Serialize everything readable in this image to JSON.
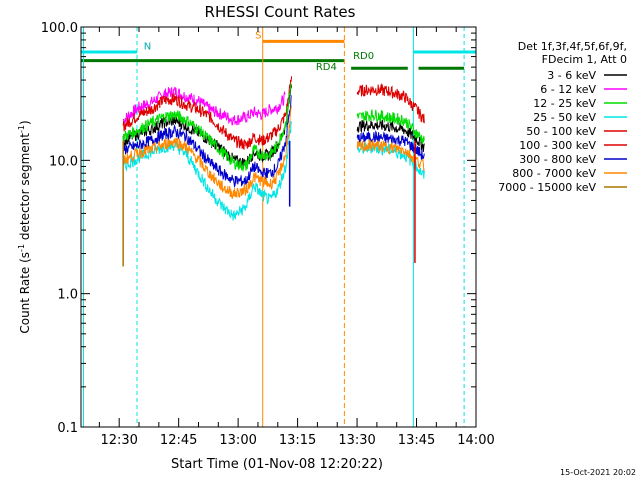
{
  "chart_data": {
    "type": "line",
    "title": "RHESSI Count Rates",
    "xlabel": "Start Time (01-Nov-08 12:20:22)",
    "ylabel_main": "Count Rate (s",
    "ylabel_sup1": "-1",
    "ylabel_mid": " detector segment",
    "ylabel_sup2": "-1",
    "ylabel_end": ")",
    "y_scale": "log",
    "xlim_minutes": [
      740.367,
      840
    ],
    "ylim": [
      0.1,
      100
    ],
    "x_ticks": [
      {
        "min": 750,
        "label": "12:30"
      },
      {
        "min": 765,
        "label": "12:45"
      },
      {
        "min": 780,
        "label": "13:00"
      },
      {
        "min": 795,
        "label": "13:15"
      },
      {
        "min": 810,
        "label": "13:30"
      },
      {
        "min": 825,
        "label": "13:45"
      },
      {
        "min": 840,
        "label": "14:00"
      }
    ],
    "y_ticks": [
      {
        "value": 0.1,
        "label": "0.1"
      },
      {
        "value": 1,
        "label": "1.0"
      },
      {
        "value": 10,
        "label": "10.0"
      },
      {
        "value": 100,
        "label": "100.0"
      }
    ],
    "legend_position": "right",
    "legend_header": [
      "Det 1f,3f,4f,5f,6f,9f,",
      "FDecim 1, Att 0"
    ],
    "series": [
      {
        "name": "3 - 6 keV",
        "color": "#000000"
      },
      {
        "name": "6 - 12 keV",
        "color": "#ff00ff"
      },
      {
        "name": "12 - 25 keV",
        "color": "#00dd00"
      },
      {
        "name": "25 - 50 keV",
        "color": "#00e5e5"
      },
      {
        "name": "50 - 100 keV",
        "color": "#dd0000"
      },
      {
        "name": "100 - 300 keV",
        "color": "#dd0000"
      },
      {
        "name": "300 - 800 keV",
        "color": "#0000cc"
      },
      {
        "name": "800 - 7000 keV",
        "color": "#ff8800"
      },
      {
        "name": "7000 - 15000 keV",
        "color": "#aa7700"
      }
    ],
    "data_series": [
      {
        "name": "6 - 12 keV",
        "color": "#ff00ff",
        "points": [
          [
            751,
            20
          ],
          [
            755,
            25
          ],
          [
            758,
            27
          ],
          [
            761,
            31
          ],
          [
            764,
            33
          ],
          [
            767,
            30
          ],
          [
            770,
            28
          ],
          [
            773,
            24
          ],
          [
            776,
            22
          ],
          [
            779,
            20
          ],
          [
            782,
            21
          ],
          [
            784,
            23
          ],
          [
            786,
            22
          ],
          [
            788,
            24
          ],
          [
            790,
            25
          ],
          [
            792,
            30
          ]
        ]
      },
      {
        "name": "100 - 300 keV",
        "color": "#dd0000",
        "points": [
          [
            751,
            18
          ],
          [
            755,
            22
          ],
          [
            758,
            24
          ],
          [
            761,
            28
          ],
          [
            764,
            29
          ],
          [
            767,
            26
          ],
          [
            770,
            24
          ],
          [
            773,
            21
          ],
          [
            776,
            17
          ],
          [
            779,
            14
          ],
          [
            782,
            13
          ],
          [
            784,
            15
          ],
          [
            786,
            14
          ],
          [
            788,
            15
          ],
          [
            790,
            17
          ],
          [
            792,
            22
          ],
          [
            793.5,
            42
          ],
          [
            810,
            33
          ],
          [
            814,
            34
          ],
          [
            818,
            33
          ],
          [
            822,
            30
          ],
          [
            825,
            24
          ],
          [
            827,
            20
          ]
        ]
      },
      {
        "name": "3 - 6 keV",
        "color": "#000000",
        "points": [
          [
            751,
            14
          ],
          [
            755,
            16
          ],
          [
            758,
            17
          ],
          [
            761,
            19
          ],
          [
            764,
            20
          ],
          [
            767,
            18
          ],
          [
            770,
            16
          ],
          [
            773,
            14
          ],
          [
            776,
            12
          ],
          [
            779,
            10
          ],
          [
            782,
            9.5
          ],
          [
            784,
            11.5
          ],
          [
            786,
            10.8
          ],
          [
            788,
            11
          ],
          [
            790,
            13
          ],
          [
            792,
            18
          ],
          [
            793.5,
            38
          ],
          [
            810,
            18
          ],
          [
            814,
            18.5
          ],
          [
            818,
            18
          ],
          [
            822,
            17
          ],
          [
            825,
            14.5
          ],
          [
            827,
            12.5
          ]
        ]
      },
      {
        "name": "12 - 25 keV",
        "color": "#00dd00",
        "points": [
          [
            751,
            15
          ],
          [
            755,
            17
          ],
          [
            758,
            19
          ],
          [
            761,
            21
          ],
          [
            764,
            22
          ],
          [
            767,
            20
          ],
          [
            770,
            17
          ],
          [
            773,
            14
          ],
          [
            776,
            11.5
          ],
          [
            779,
            9.5
          ],
          [
            782,
            9
          ],
          [
            784,
            12
          ],
          [
            786,
            11
          ],
          [
            788,
            11
          ],
          [
            790,
            13
          ],
          [
            792,
            19
          ],
          [
            793.5,
            40
          ],
          [
            810,
            21
          ],
          [
            814,
            22
          ],
          [
            818,
            21
          ],
          [
            822,
            20
          ],
          [
            825,
            16
          ],
          [
            827,
            14
          ]
        ]
      },
      {
        "name": "300 - 800 keV",
        "color": "#0000cc",
        "points": [
          [
            751,
            12
          ],
          [
            755,
            13
          ],
          [
            758,
            14
          ],
          [
            761,
            15.5
          ],
          [
            764,
            16.5
          ],
          [
            767,
            15
          ],
          [
            770,
            12
          ],
          [
            773,
            9.5
          ],
          [
            776,
            8
          ],
          [
            779,
            7
          ],
          [
            782,
            7
          ],
          [
            784,
            9
          ],
          [
            786,
            8
          ],
          [
            788,
            8
          ],
          [
            790,
            9
          ],
          [
            792,
            14
          ],
          [
            793.5,
            30
          ],
          [
            810,
            14.5
          ],
          [
            814,
            15
          ],
          [
            818,
            14.5
          ],
          [
            822,
            14
          ],
          [
            825,
            12
          ],
          [
            827,
            10.5
          ]
        ]
      },
      {
        "name": "25 - 50 keV",
        "color": "#00e5e5",
        "points": [
          [
            751,
            9
          ],
          [
            755,
            10.5
          ],
          [
            758,
            11.5
          ],
          [
            761,
            12.5
          ],
          [
            764,
            13
          ],
          [
            767,
            11
          ],
          [
            770,
            8
          ],
          [
            773,
            5.8
          ],
          [
            776,
            4.5
          ],
          [
            779,
            3.8
          ],
          [
            782,
            4.5
          ],
          [
            784,
            6.5
          ],
          [
            786,
            5.5
          ],
          [
            788,
            5
          ],
          [
            790,
            6
          ],
          [
            792,
            9
          ],
          [
            793.5,
            20
          ],
          [
            810,
            12
          ],
          [
            814,
            12.5
          ],
          [
            818,
            12
          ],
          [
            822,
            11
          ],
          [
            825,
            9
          ],
          [
            827,
            7.5
          ]
        ]
      },
      {
        "name": "800 - 7000 keV",
        "color": "#ff8800",
        "points": [
          [
            751,
            10
          ],
          [
            755,
            11.5
          ],
          [
            758,
            12
          ],
          [
            761,
            13
          ],
          [
            764,
            14
          ],
          [
            767,
            12.5
          ],
          [
            770,
            10
          ],
          [
            773,
            7.8
          ],
          [
            776,
            6.3
          ],
          [
            779,
            5.6
          ],
          [
            782,
            6
          ],
          [
            784,
            7.5
          ],
          [
            786,
            7
          ],
          [
            788,
            6.6
          ],
          [
            790,
            7.5
          ],
          [
            792,
            11
          ],
          [
            793.5,
            25
          ],
          [
            810,
            12.5
          ],
          [
            814,
            13
          ],
          [
            818,
            12.5
          ],
          [
            822,
            12
          ],
          [
            825,
            10
          ],
          [
            827,
            9
          ]
        ]
      }
    ],
    "markers": [
      {
        "label": "N",
        "color": "#00e5e5",
        "style": "dashed",
        "x": 754.5
      },
      {
        "label": "S",
        "color": "#ff8800",
        "style": "solid",
        "x": 786.2
      },
      {
        "label": "RD0",
        "color": "#007700",
        "style": "dash",
        "x": 806.8
      },
      {
        "label": "RD4",
        "color": "#ff8800",
        "style": "dashed",
        "x": 806.8
      }
    ],
    "footer_date": "15-Oct-2021 20:02"
  }
}
